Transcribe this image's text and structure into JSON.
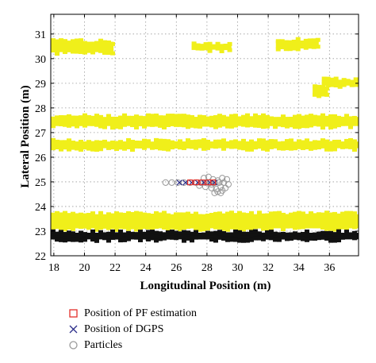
{
  "chart_data": {
    "type": "scatter",
    "xlabel": "Longitudinal Position (m)",
    "ylabel": "Lateral Position (m)",
    "xlim": [
      17.8,
      37.9
    ],
    "ylim": [
      22,
      31.8
    ],
    "xticks": [
      18,
      20,
      22,
      24,
      26,
      28,
      30,
      32,
      34,
      36
    ],
    "yticks": [
      22,
      23,
      24,
      25,
      26,
      27,
      28,
      29,
      30,
      31
    ],
    "grid": true,
    "legend_position": "below",
    "map_bands": [
      {
        "color": "#f0ef1a",
        "x": [
          17.8,
          37.9
        ],
        "y": [
          23.05,
          23.75
        ]
      },
      {
        "color": "#f0ef1a",
        "x": [
          17.8,
          37.9
        ],
        "y": [
          26.3,
          26.7
        ]
      },
      {
        "color": "#f0ef1a",
        "x": [
          17.8,
          37.9
        ],
        "y": [
          27.2,
          27.7
        ]
      },
      {
        "color": "#f0ef1a",
        "x": [
          17.8,
          21.9
        ],
        "y": [
          30.2,
          30.75
        ]
      },
      {
        "color": "#f0ef1a",
        "x": [
          27.0,
          29.6
        ],
        "y": [
          30.3,
          30.65
        ]
      },
      {
        "color": "#f0ef1a",
        "x": [
          32.5,
          35.3
        ],
        "y": [
          30.35,
          30.8
        ]
      },
      {
        "color": "#f0ef1a",
        "x": [
          34.9,
          35.9
        ],
        "y": [
          28.4,
          28.9
        ]
      },
      {
        "color": "#f0ef1a",
        "x": [
          35.5,
          37.9
        ],
        "y": [
          28.85,
          29.2
        ]
      },
      {
        "color": "#111111",
        "x": [
          17.8,
          37.9
        ],
        "y": [
          22.6,
          23.0
        ]
      }
    ],
    "series": [
      {
        "name": "Position of PF estimation",
        "marker": "square",
        "color": "#e3302b",
        "x": [
          26.9,
          27.3,
          27.7,
          28.1,
          28.4
        ],
        "y": [
          24.98,
          24.98,
          24.98,
          24.98,
          24.98
        ]
      },
      {
        "name": "Position of DGPS",
        "marker": "x",
        "color": "#2d2f8a",
        "x": [
          26.2,
          26.6,
          27.0,
          27.4,
          27.8,
          28.2,
          28.5
        ],
        "y": [
          24.97,
          24.97,
          24.97,
          24.97,
          24.97,
          24.97,
          24.97
        ]
      },
      {
        "name": "Particles",
        "marker": "circle",
        "color": "#9a9a9a",
        "x": [
          25.3,
          25.7,
          26.1,
          26.5,
          26.9,
          27.3,
          27.6,
          27.9,
          28.2,
          28.5,
          28.8,
          29.1,
          29.4,
          27.8,
          28.1,
          28.4,
          28.7,
          29.0,
          29.3,
          28.3,
          28.6,
          28.9,
          29.2,
          27.5,
          27.9,
          28.3,
          28.7,
          29.0,
          28.5,
          28.9
        ],
        "y": [
          24.97,
          24.97,
          24.97,
          24.97,
          24.97,
          24.97,
          24.97,
          24.97,
          24.97,
          24.97,
          24.97,
          24.97,
          24.9,
          25.15,
          25.2,
          25.1,
          25.05,
          25.15,
          25.1,
          24.75,
          24.7,
          24.8,
          24.75,
          24.85,
          24.8,
          24.9,
          24.6,
          24.65,
          24.55,
          24.55
        ]
      }
    ]
  },
  "legend": {
    "items": [
      {
        "label": "Position of PF estimation",
        "marker": "square",
        "color": "#e3302b"
      },
      {
        "label": "Position of DGPS",
        "marker": "x",
        "color": "#2d2f8a"
      },
      {
        "label": "Particles",
        "marker": "circle",
        "color": "#9a9a9a"
      }
    ]
  }
}
